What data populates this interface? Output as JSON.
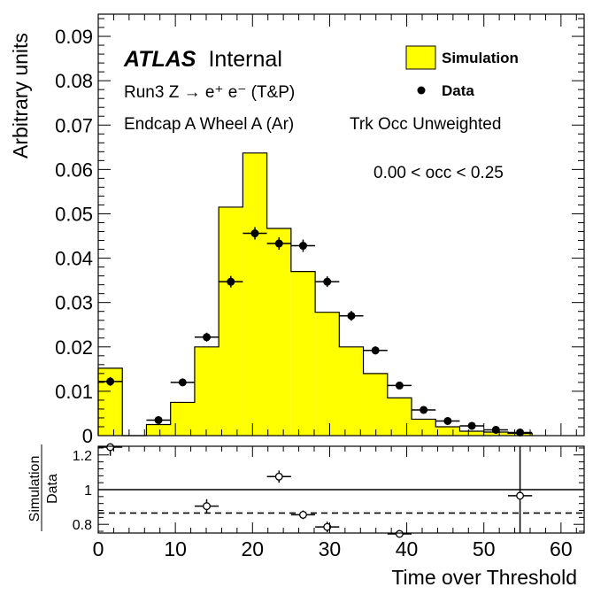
{
  "chart_data": [
    {
      "type": "histogram",
      "panel": "main",
      "labels": {
        "atlas": "ATLAS",
        "internal": "Internal",
        "process": "Run3 Z → e⁺ e⁻ (T&P)",
        "region": "Endcap A Wheel A (Ar)",
        "weighting": "Trk Occ Unweighted",
        "occ_range": "0.00 < occ < 0.25"
      },
      "ylabel": "Arbitrary units",
      "xlim": [
        0,
        63
      ],
      "ylim": [
        0,
        0.095
      ],
      "yticks": [
        "0",
        "0.01",
        "0.02",
        "0.03",
        "0.04",
        "0.05",
        "0.06",
        "0.07",
        "0.08",
        "0.09"
      ],
      "legend_position": "top-right",
      "series": [
        {
          "name": "Simulation",
          "style": "filled histogram",
          "color": "#ffff00",
          "bin_edges": [
            0,
            3.125,
            6.25,
            9.375,
            12.5,
            15.625,
            18.75,
            21.875,
            25,
            28.125,
            31.25,
            34.375,
            37.5,
            40.625,
            43.75,
            46.875,
            50,
            53.125,
            56.25
          ],
          "values": [
            0.0152,
            0.0,
            0.0025,
            0.0075,
            0.02,
            0.0515,
            0.0637,
            0.0467,
            0.037,
            0.0278,
            0.02,
            0.014,
            0.0085,
            0.0037,
            0.002,
            0.001,
            0.0008,
            0.0005
          ]
        },
        {
          "name": "Data",
          "style": "markers with error bars",
          "color": "#000000",
          "x": [
            1.56,
            7.81,
            10.94,
            14.06,
            17.19,
            20.31,
            23.44,
            26.56,
            29.69,
            32.81,
            35.94,
            39.06,
            42.19,
            45.31,
            48.44,
            51.56,
            54.69
          ],
          "y": [
            0.0122,
            0.0035,
            0.012,
            0.0222,
            0.0347,
            0.0456,
            0.0433,
            0.0428,
            0.0347,
            0.027,
            0.0192,
            0.0113,
            0.0058,
            0.0033,
            0.0022,
            0.0013,
            0.0007
          ],
          "yerr": [
            0.001,
            0.0006,
            0.0008,
            0.001,
            0.0013,
            0.0014,
            0.0014,
            0.0014,
            0.0012,
            0.0011,
            0.0009,
            0.0007,
            0.0005,
            0.0004,
            0.0003,
            0.0002,
            0.0002
          ]
        }
      ]
    },
    {
      "type": "scatter",
      "panel": "ratio",
      "ylabel_top": "Simulation",
      "ylabel_bottom": "Data",
      "xlabel": "Time over Threshold",
      "xlim": [
        0,
        63
      ],
      "ylim": [
        0.75,
        1.25
      ],
      "xticks": [
        "0",
        "10",
        "20",
        "30",
        "40",
        "50",
        "60"
      ],
      "yticks": [
        "0.8",
        "1",
        "1.2"
      ],
      "reference_lines": [
        {
          "y": 1.0,
          "style": "solid"
        },
        {
          "y": 0.865,
          "style": "dashed"
        }
      ],
      "points": {
        "x": [
          1.56,
          14.06,
          23.44,
          26.56,
          29.69,
          39.06,
          54.69
        ],
        "y": [
          1.245,
          0.905,
          1.075,
          0.855,
          0.785,
          0.745,
          0.965
        ],
        "xerr": 1.56,
        "yerr": [
          0.05,
          0.04,
          0.035,
          0.025,
          0.03,
          0.02,
          0.4
        ]
      }
    }
  ]
}
